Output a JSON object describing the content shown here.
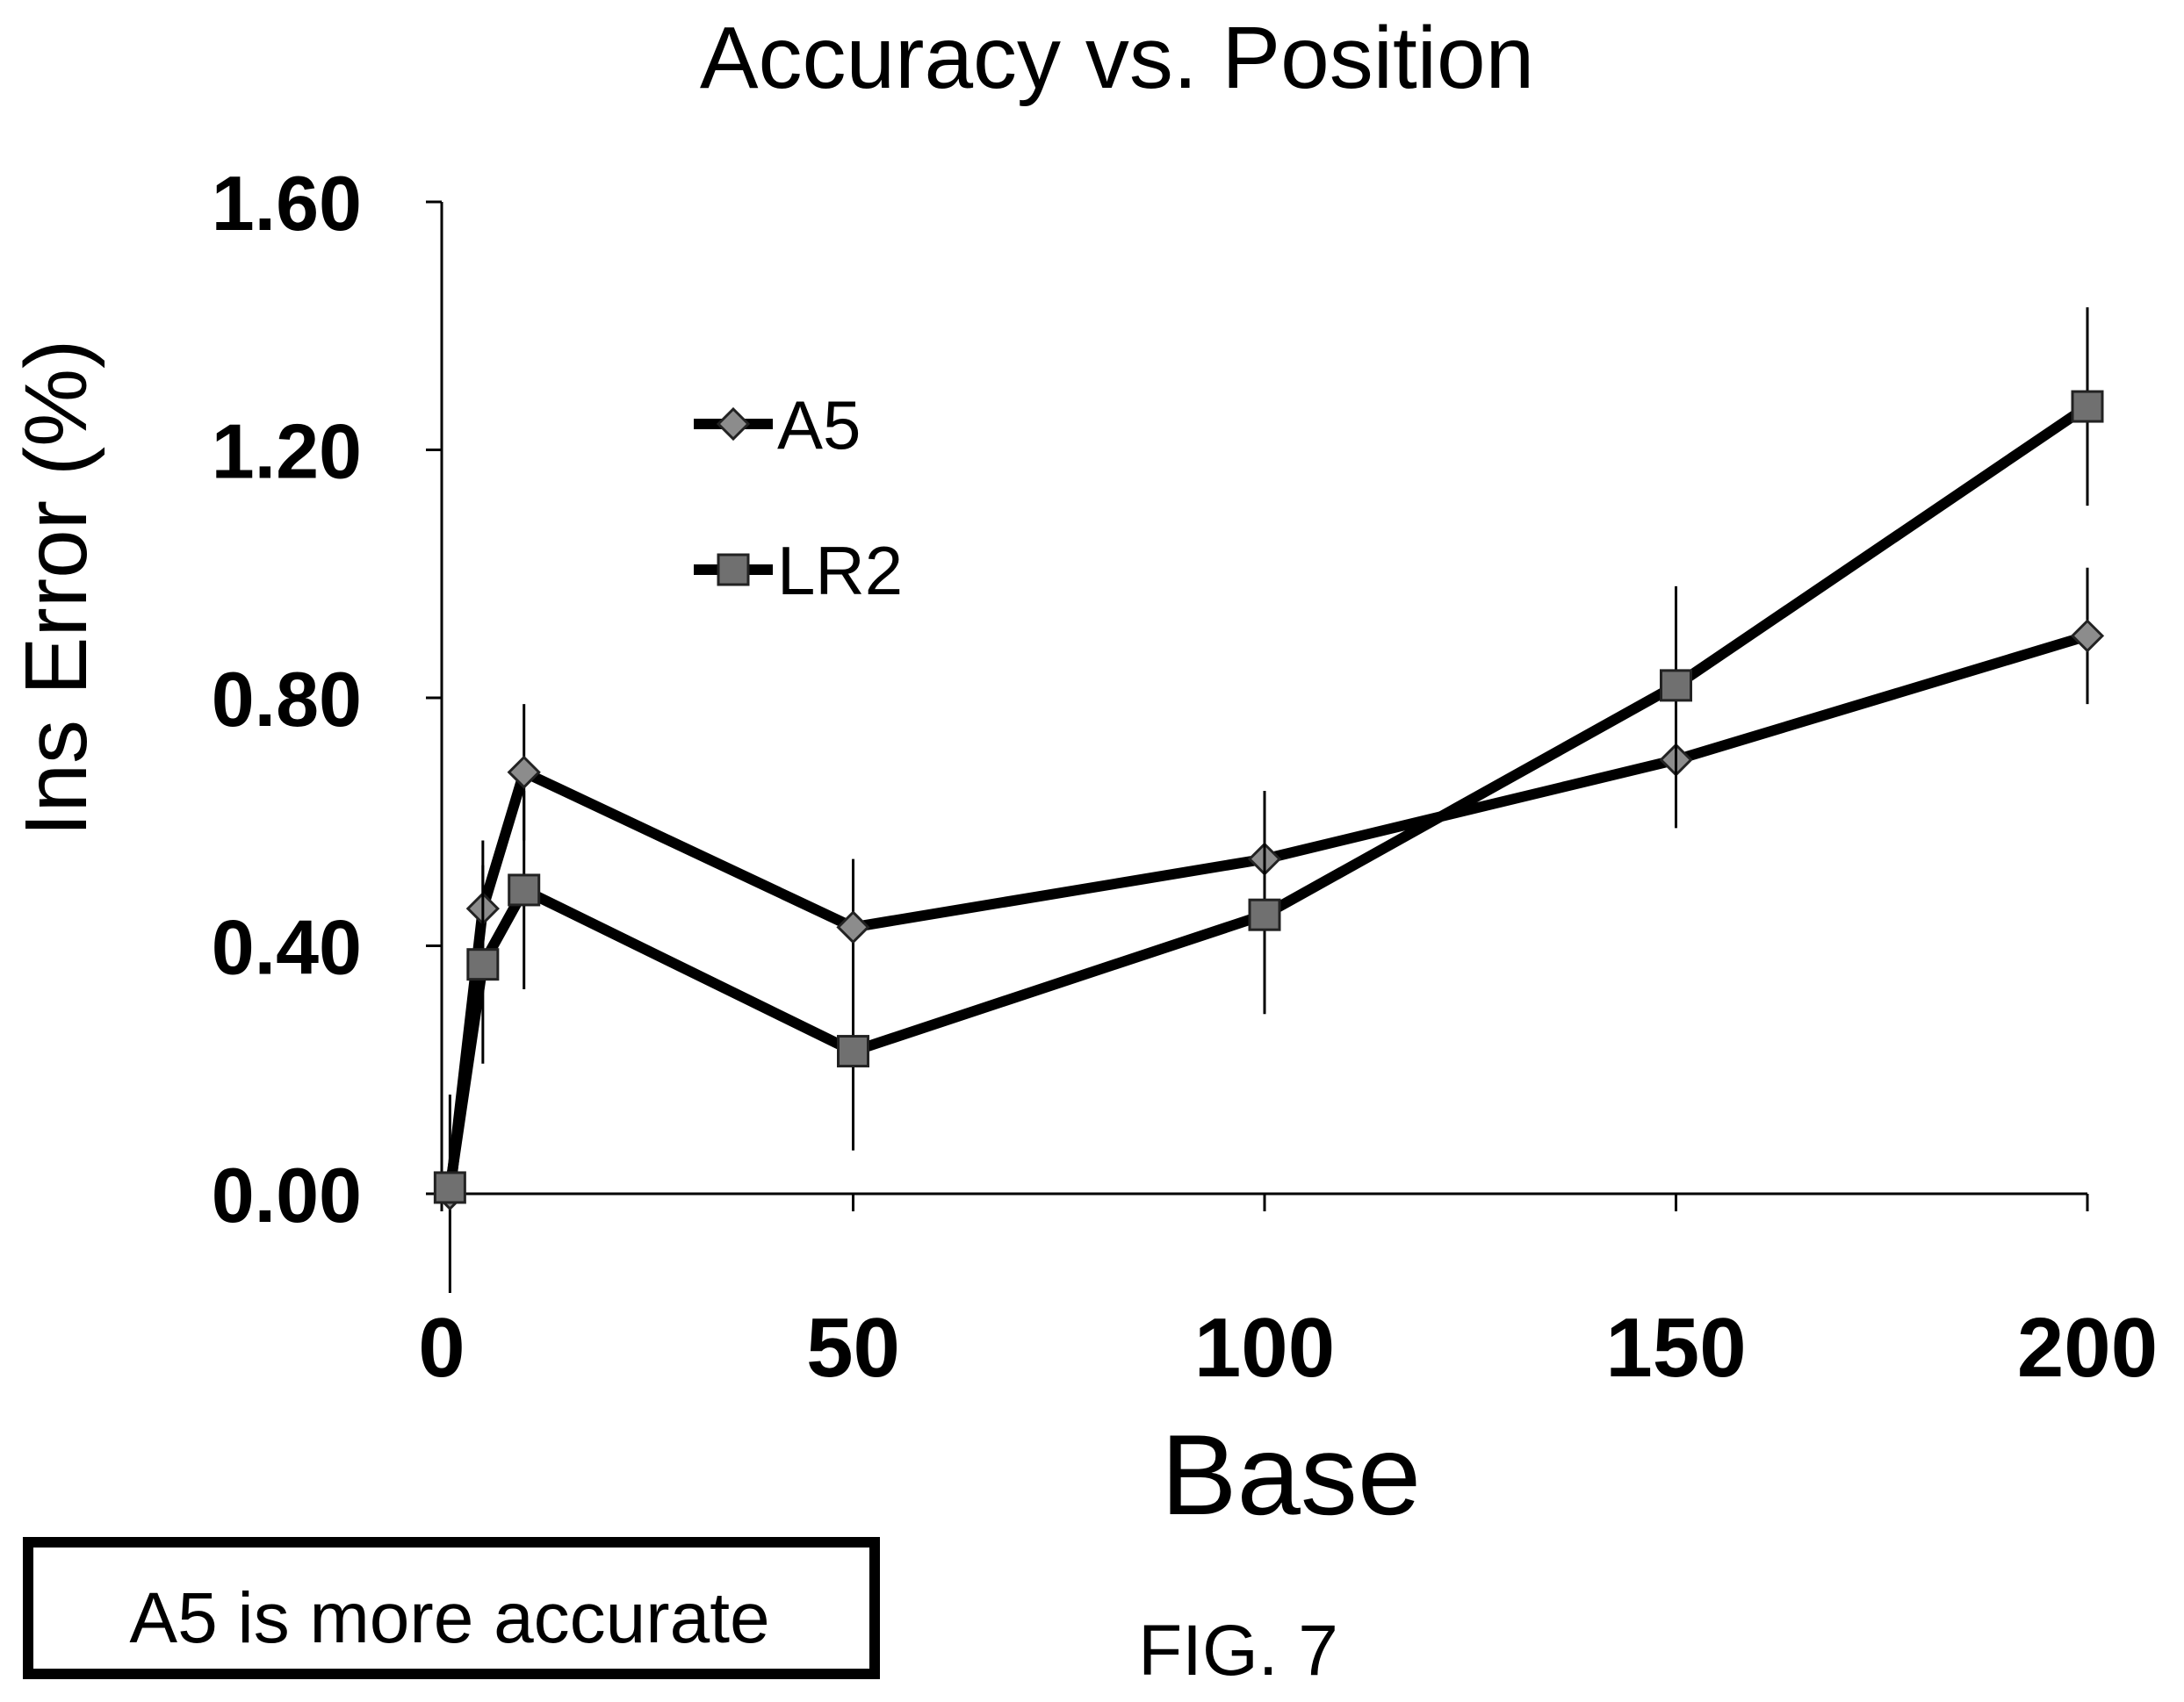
{
  "chart_data": {
    "type": "line",
    "title": "Accuracy vs. Position",
    "xlabel": "Base",
    "ylabel": "Ins Error (%)",
    "xlim": [
      0,
      200
    ],
    "ylim": [
      0,
      1.6
    ],
    "xticks": [
      "0",
      "50",
      "100",
      "150",
      "200"
    ],
    "yticks": [
      "0.00",
      "0.40",
      "0.80",
      "1.20",
      "1.60"
    ],
    "grid": false,
    "legend": "upper-left",
    "series": [
      {
        "name": "A5",
        "marker": "diamond",
        "color": "#000000",
        "marker_color": "#8c8c8c",
        "x": [
          1,
          5,
          10,
          50,
          100,
          150,
          200
        ],
        "y": [
          0.0,
          0.46,
          0.68,
          0.43,
          0.54,
          0.7,
          0.9
        ],
        "error": [
          0.16,
          0.11,
          0.11,
          0.11,
          0.11,
          0.11,
          0.11
        ]
      },
      {
        "name": "LR2",
        "marker": "square",
        "color": "#000000",
        "marker_color": "#707070",
        "x": [
          1,
          5,
          10,
          50,
          100,
          150,
          200
        ],
        "y": [
          0.01,
          0.37,
          0.49,
          0.23,
          0.45,
          0.82,
          1.27
        ],
        "error": [
          0.0,
          0.16,
          0.16,
          0.16,
          0.16,
          0.16,
          0.16
        ]
      }
    ]
  },
  "annotation": "A5 is more accurate",
  "figure_label": "FIG. 7"
}
